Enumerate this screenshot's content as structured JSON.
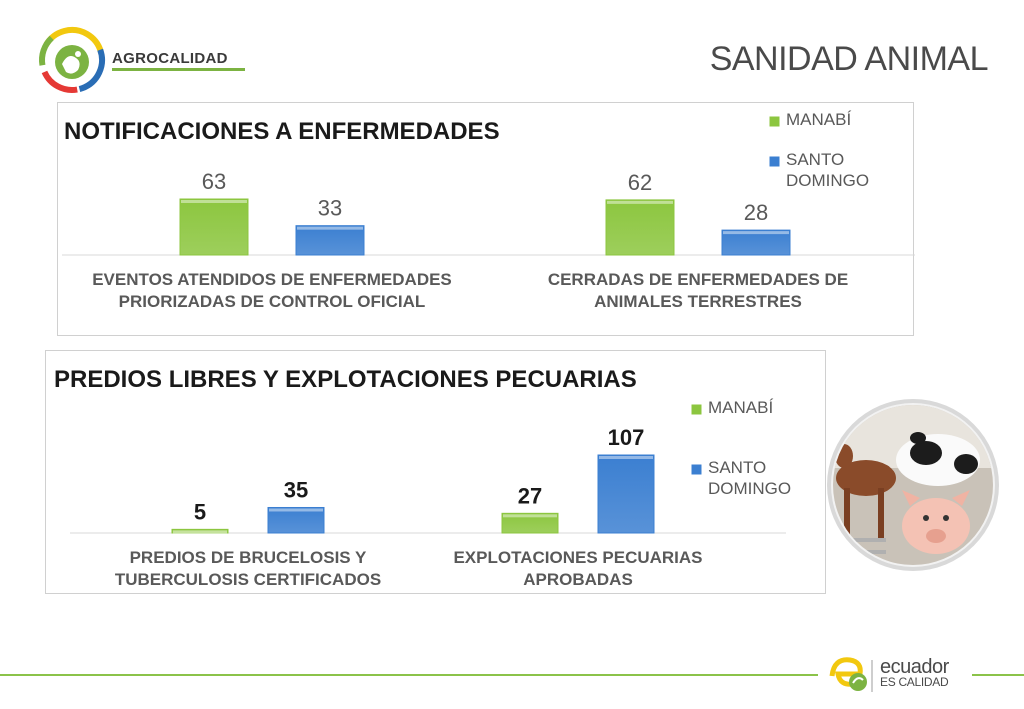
{
  "header": {
    "brand": "AGROCALIDAD",
    "title": "SANIDAD ANIMAL",
    "logo_colors": [
      "#f2c80f",
      "#2a6db5",
      "#e53935",
      "#7cb342"
    ]
  },
  "colors": {
    "green": "#8cc63f",
    "blue": "#3b7fd1",
    "label": "#595959",
    "footer_line": "#8bc34a"
  },
  "chart_data": [
    {
      "type": "bar",
      "title": "NOTIFICACIONES A ENFERMEDADES",
      "categories": [
        [
          "EVENTOS ATENDIDOS DE ENFERMEDADES",
          "PRIORIZADAS DE CONTROL OFICIAL"
        ],
        [
          "CERRADAS DE ENFERMEDADES DE",
          "ANIMALES TERRESTRES"
        ]
      ],
      "series": [
        {
          "name": "MANABÍ",
          "values": [
            63,
            62
          ],
          "color": "#8cc63f"
        },
        {
          "name": "SANTO DOMINGO",
          "values": [
            33,
            28
          ],
          "color": "#3b7fd1"
        }
      ],
      "legend": [
        "MANABÍ",
        [
          "SANTO",
          "DOMINGO"
        ]
      ],
      "legend_position": "top-right",
      "ylim": [
        0,
        63
      ],
      "grid": false
    },
    {
      "type": "bar",
      "title": "PREDIOS LIBRES Y EXPLOTACIONES PECUARIAS",
      "categories": [
        [
          "PREDIOS DE BRUCELOSIS Y",
          "TUBERCULOSIS CERTIFICADOS"
        ],
        [
          "EXPLOTACIONES PECUARIAS",
          "APROBADAS"
        ]
      ],
      "series": [
        {
          "name": "MANABÍ",
          "values": [
            5,
            27
          ],
          "color": "#8cc63f"
        },
        {
          "name": "SANTO DOMINGO",
          "values": [
            35,
            107
          ],
          "color": "#3b7fd1"
        }
      ],
      "legend": [
        "MANABÍ",
        [
          "SANTO",
          "DOMINGO"
        ]
      ],
      "legend_position": "right",
      "ylim": [
        0,
        107
      ],
      "grid": false
    }
  ],
  "footer": {
    "brand_word": "ecuador",
    "brand_sub": "ES CALIDAD"
  }
}
